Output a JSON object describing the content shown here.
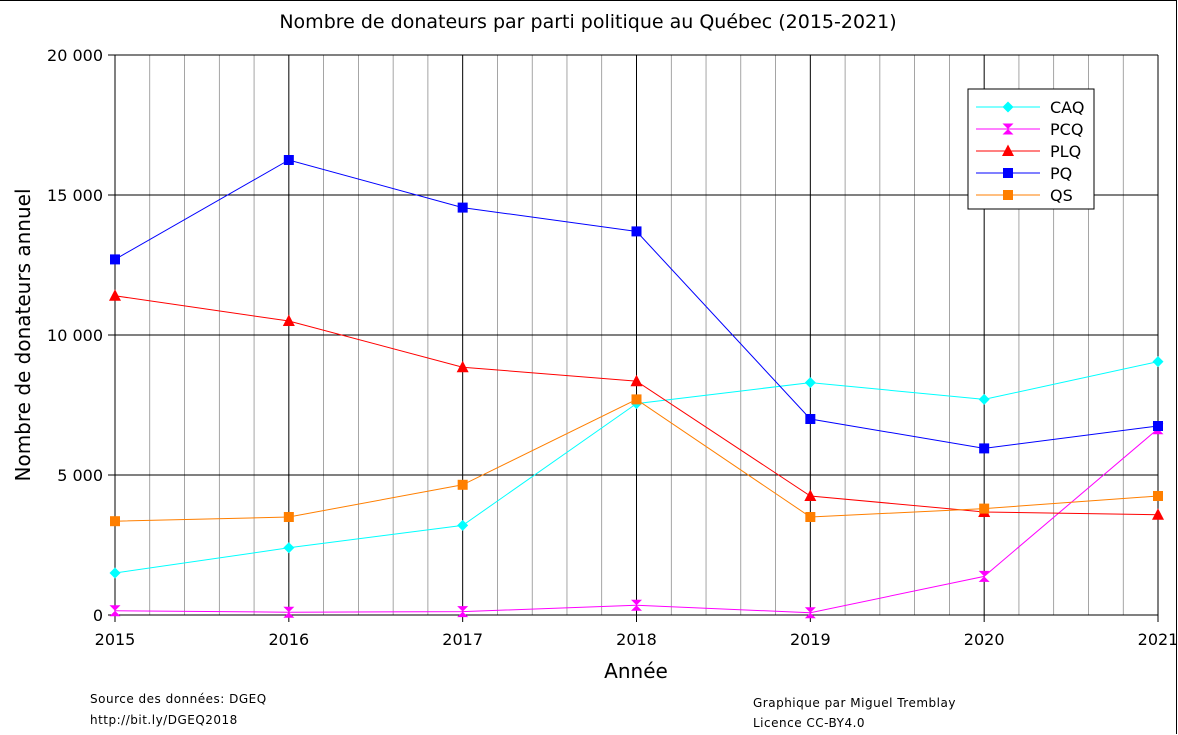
{
  "chart_data": {
    "type": "line",
    "title": "Nombre de donateurs par parti politique au Québec (2015-2021)",
    "xlabel": "Année",
    "ylabel": "Nombre de donateurs annuel",
    "x": [
      2015,
      2016,
      2017,
      2018,
      2019,
      2020,
      2021
    ],
    "x_tick_labels": [
      "2015",
      "2016",
      "2017",
      "2018",
      "2019",
      "2020",
      "2021"
    ],
    "xlim": [
      2015,
      2021
    ],
    "ylim": [
      0,
      20000
    ],
    "y_ticks": [
      0,
      5000,
      10000,
      15000,
      20000
    ],
    "y_tick_labels": [
      "0",
      "5 000",
      "10 000",
      "15 000",
      "20 000"
    ],
    "x_minor_per_major": 5,
    "grid": true,
    "legend_position": "top-right",
    "series": [
      {
        "name": "CAQ",
        "color": "#00ffff",
        "marker": "diamond",
        "values": [
          1500,
          2400,
          3200,
          7550,
          8300,
          7700,
          9050
        ]
      },
      {
        "name": "PCQ",
        "color": "#ff00ff",
        "marker": "hourglass",
        "values": [
          150,
          100,
          120,
          350,
          80,
          1380,
          6650
        ]
      },
      {
        "name": "PLQ",
        "color": "#ff0000",
        "marker": "triangle",
        "values": [
          11400,
          10500,
          8850,
          8350,
          4250,
          3680,
          3580
        ]
      },
      {
        "name": "PQ",
        "color": "#0000ff",
        "marker": "square",
        "values": [
          12700,
          16250,
          14550,
          13700,
          7000,
          5950,
          6750
        ]
      },
      {
        "name": "QS",
        "color": "#ff7f00",
        "marker": "square",
        "values": [
          3350,
          3500,
          4650,
          7700,
          3500,
          3800,
          4250
        ]
      }
    ]
  },
  "credits": {
    "source": "Source des données: DGEQ",
    "url": "http://bit.ly/DGEQ2018",
    "author": "Graphique par Miguel Tremblay",
    "license": "Licence CC-BY4.0"
  }
}
